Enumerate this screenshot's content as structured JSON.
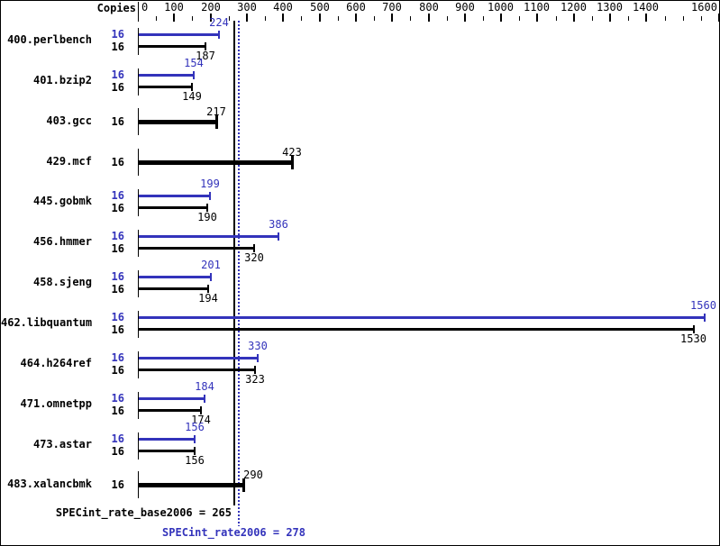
{
  "chart_data": {
    "type": "bar",
    "orientation": "horizontal",
    "copies_header": "Copies",
    "x_axis": {
      "min": 0,
      "max": 1600,
      "minor_tick": 50,
      "major_tick": 100,
      "tick_labels": [
        0,
        100,
        200,
        300,
        400,
        500,
        600,
        700,
        800,
        900,
        1000,
        1100,
        1200,
        1300,
        1400,
        1600
      ]
    },
    "colors": {
      "peak": "#3333bb",
      "base": "#000000"
    },
    "benchmarks": [
      {
        "name": "400.perlbench",
        "peak_copies": 16,
        "base_copies": 16,
        "peak": 224,
        "base": 187
      },
      {
        "name": "401.bzip2",
        "peak_copies": 16,
        "base_copies": 16,
        "peak": 154,
        "base": 149
      },
      {
        "name": "403.gcc",
        "base_copies": 16,
        "base": 217
      },
      {
        "name": "429.mcf",
        "base_copies": 16,
        "base": 423
      },
      {
        "name": "445.gobmk",
        "peak_copies": 16,
        "base_copies": 16,
        "peak": 199,
        "base": 190
      },
      {
        "name": "456.hmmer",
        "peak_copies": 16,
        "base_copies": 16,
        "peak": 386,
        "base": 320
      },
      {
        "name": "458.sjeng",
        "peak_copies": 16,
        "base_copies": 16,
        "peak": 201,
        "base": 194
      },
      {
        "name": "462.libquantum",
        "peak_copies": 16,
        "base_copies": 16,
        "peak": 1560,
        "base": 1530
      },
      {
        "name": "464.h264ref",
        "peak_copies": 16,
        "base_copies": 16,
        "peak": 330,
        "base": 323
      },
      {
        "name": "471.omnetpp",
        "peak_copies": 16,
        "base_copies": 16,
        "peak": 184,
        "base": 174
      },
      {
        "name": "473.astar",
        "peak_copies": 16,
        "base_copies": 16,
        "peak": 156,
        "base": 156
      },
      {
        "name": "483.xalancbmk",
        "base_copies": 16,
        "base": 290
      }
    ],
    "summary": {
      "base_label": "SPECint_rate_base2006",
      "base_value": 265,
      "peak_label": "SPECint_rate2006",
      "peak_value": 278
    }
  }
}
